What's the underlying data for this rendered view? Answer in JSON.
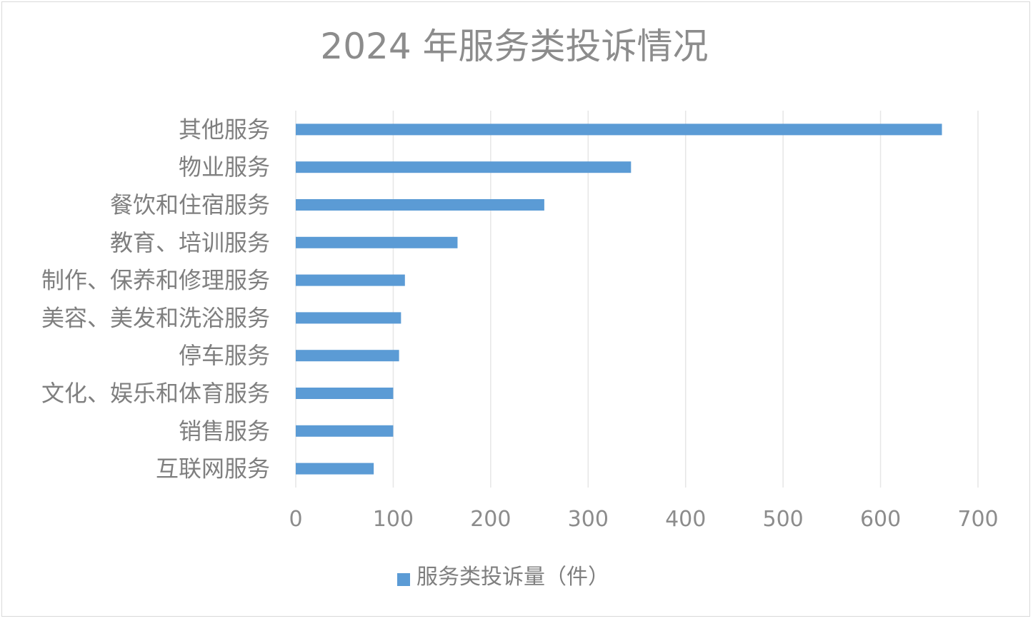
{
  "chart_data": {
    "type": "bar",
    "orientation": "horizontal",
    "title": "2024 年服务类投诉情况",
    "categories": [
      "其他服务",
      "物业服务",
      "餐饮和住宿服务",
      "教育、培训服务",
      "制作、保养和修理服务",
      "美容、美发和洗浴服务",
      "停车服务",
      "文化、娱乐和体育服务",
      "销售服务",
      "互联网服务"
    ],
    "series": [
      {
        "name": "服务类投诉量（件）",
        "color": "#5b9bd5",
        "values": [
          663,
          344,
          255,
          166,
          112,
          108,
          106,
          100,
          100,
          80
        ]
      }
    ],
    "xlim": [
      0,
      700
    ],
    "xticks": [
      0,
      100,
      200,
      300,
      400,
      500,
      600,
      700
    ],
    "grid": "vertical",
    "legend_position": "bottom"
  }
}
